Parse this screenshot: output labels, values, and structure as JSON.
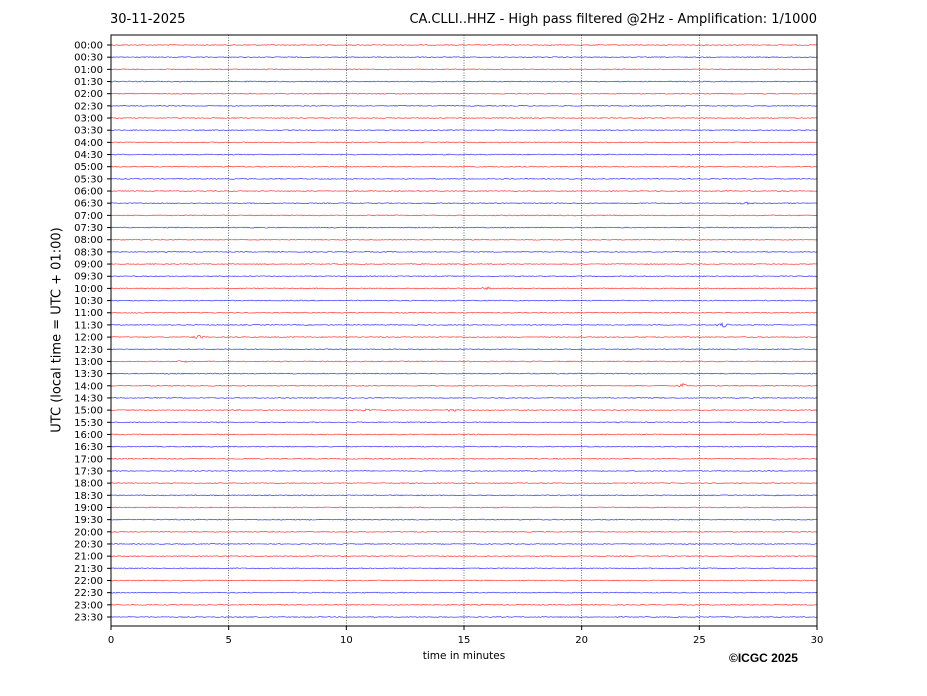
{
  "header": {
    "date": "30-11-2025",
    "title": "CA.CLLI..HHZ - High pass filtered @2Hz - Amplification: 1/1000"
  },
  "footer": {
    "copyright": "©ICGC 2025"
  },
  "chart_data": {
    "type": "line",
    "title": "CA.CLLI..HHZ - High pass filtered @2Hz - Amplification: 1/1000",
    "xlabel": "time in minutes",
    "ylabel": "UTC (local time = UTC + 01:00)",
    "xlim": [
      0,
      30
    ],
    "x_ticks": [
      "0",
      "5",
      "10",
      "15",
      "20",
      "25",
      "30"
    ],
    "y_ticks": [
      "00:00",
      "00:30",
      "01:00",
      "01:30",
      "02:00",
      "02:30",
      "03:00",
      "03:30",
      "04:00",
      "04:30",
      "05:00",
      "05:30",
      "06:00",
      "06:30",
      "07:00",
      "07:30",
      "08:00",
      "08:30",
      "09:00",
      "09:30",
      "10:00",
      "10:30",
      "11:00",
      "11:30",
      "12:00",
      "12:30",
      "13:00",
      "13:30",
      "14:00",
      "14:30",
      "15:00",
      "15:30",
      "16:00",
      "16:30",
      "17:00",
      "17:30",
      "18:00",
      "18:30",
      "19:00",
      "19:30",
      "20:00",
      "20:30",
      "21:00",
      "21:30",
      "22:00",
      "22:30",
      "23:00",
      "23:30"
    ],
    "trace_colors": [
      "#ff0000",
      "#0000ff"
    ],
    "grid": "vertical dotted at 5-minute ticks",
    "events": [
      {
        "row": "06:30",
        "minute": 27.0,
        "amplitude": 1.5
      },
      {
        "row": "10:00",
        "minute": 16.0,
        "amplitude": 1.5
      },
      {
        "row": "11:30",
        "minute": 26.0,
        "amplitude": 2.5
      },
      {
        "row": "12:00",
        "minute": 3.7,
        "amplitude": 2.5
      },
      {
        "row": "13:00",
        "minute": 3.0,
        "amplitude": 1.5
      },
      {
        "row": "14:00",
        "minute": 24.3,
        "amplitude": 2.5
      },
      {
        "row": "15:00",
        "minute": 10.9,
        "amplitude": 1.5
      },
      {
        "row": "15:00",
        "minute": 14.5,
        "amplitude": 1.5
      }
    ]
  }
}
